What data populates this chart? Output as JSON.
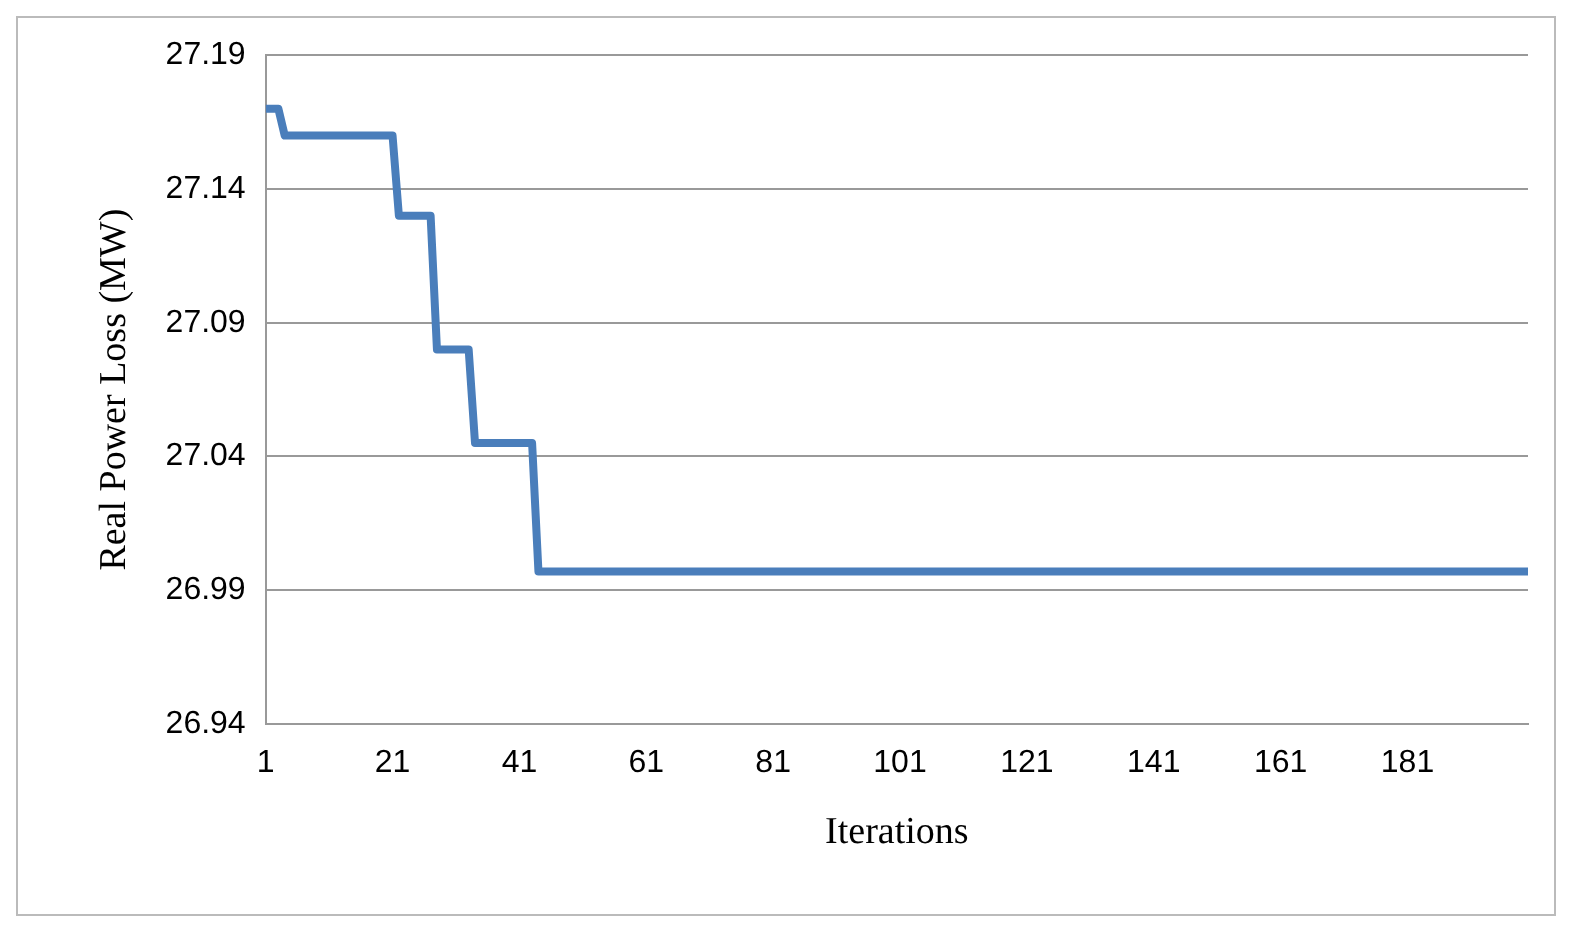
{
  "chart_data": {
    "type": "line",
    "xlabel": "Iterations",
    "ylabel": "Real Power Loss (MW)",
    "series": [
      {
        "color": "#4a7ebb",
        "x": [
          1,
          3,
          4,
          21,
          22,
          27,
          28,
          33,
          34,
          43,
          44,
          200
        ],
        "values": [
          27.17,
          27.17,
          27.16,
          27.16,
          27.13,
          27.13,
          27.08,
          27.08,
          27.045,
          27.045,
          26.997,
          26.997
        ]
      }
    ],
    "xlim": [
      1,
      200
    ],
    "xticks": [
      1,
      21,
      41,
      61,
      81,
      101,
      121,
      141,
      161,
      181
    ],
    "ylim": [
      26.94,
      27.19
    ],
    "yticks": [
      26.94,
      26.99,
      27.04,
      27.09,
      27.14,
      27.19
    ],
    "grid": "y",
    "legend": false
  }
}
